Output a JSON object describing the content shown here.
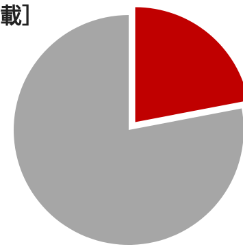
{
  "chart_data": {
    "type": "pie",
    "title": "載］",
    "slices": [
      {
        "value": 22,
        "color": "#c00000",
        "exploded": true
      },
      {
        "value": 78,
        "color": "#a6a6a6",
        "exploded": false
      }
    ]
  }
}
